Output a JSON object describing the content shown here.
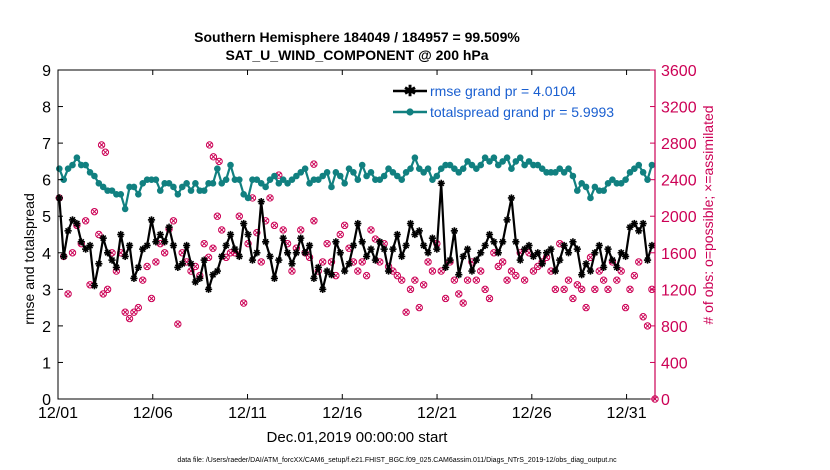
{
  "chart_data": {
    "type": "line",
    "title_line1": "Southern Hemisphere 184049 / 184957 = 99.509%",
    "title_line2": "SAT_U_WIND_COMPONENT @ 200 hPa",
    "xlabel": "Dec.01,2019 00:00:00 start",
    "ylabel_left": "rmse and totalspread",
    "ylabel_right": "# of obs: o=possible; ×=assimilated",
    "footnote": "data file: /Users/raeder/DAI/ATM_forcXX/CAM6_setup/f.e21.FHIST_BGC.f09_025.CAM6assim.011/Diags_NTrS_2019-12/obs_diag_output.nc",
    "x_range": [
      0,
      31.5
    ],
    "x_ticks": [
      {
        "x": 0,
        "label": "12/01"
      },
      {
        "x": 5,
        "label": "12/06"
      },
      {
        "x": 10,
        "label": "12/11"
      },
      {
        "x": 15,
        "label": "12/16"
      },
      {
        "x": 20,
        "label": "12/21"
      },
      {
        "x": 25,
        "label": "12/26"
      },
      {
        "x": 30,
        "label": "12/31"
      }
    ],
    "y_left_range": [
      0,
      9
    ],
    "y_left_ticks": [
      "0",
      "1",
      "2",
      "3",
      "4",
      "5",
      "6",
      "7",
      "8",
      "9"
    ],
    "y_right_range": [
      0,
      3600
    ],
    "y_right_ticks": [
      "0",
      "400",
      "800",
      "1200",
      "1600",
      "2000",
      "2400",
      "2800",
      "3200",
      "3600"
    ],
    "legend": [
      {
        "name": "rmse grand pr = 4.0104",
        "color": "#000000"
      },
      {
        "name": "totalspread grand pr = 5.9993",
        "color": "#118080"
      }
    ],
    "series": [
      {
        "name": "rmse",
        "color": "#000000",
        "values": [
          5.5,
          3.9,
          4.6,
          4.9,
          4.8,
          4.3,
          4.1,
          4.2,
          3.1,
          3.7,
          4.4,
          4.0,
          3.8,
          3.6,
          4.5,
          3.9,
          4.2,
          3.3,
          3.6,
          4.1,
          4.2,
          4.9,
          4.3,
          4.5,
          4.3,
          4.7,
          4.2,
          3.6,
          3.7,
          4.2,
          3.7,
          3.2,
          3.3,
          3.8,
          3.0,
          3.4,
          3.5,
          3.9,
          4.2,
          4.5,
          4.1,
          3.9,
          4.8,
          4.5,
          3.8,
          4.0,
          5.4,
          4.3,
          3.9,
          3.3,
          3.8,
          4.4,
          4.0,
          3.7,
          4.0,
          4.4,
          4.0,
          4.2,
          3.3,
          3.6,
          3.0,
          3.5,
          3.4,
          4.3,
          4.0,
          3.5,
          3.7,
          4.2,
          4.8,
          4.3,
          3.9,
          4.1,
          3.8,
          4.3,
          4.1,
          3.5,
          4.1,
          4.5,
          3.9,
          4.2,
          4.8,
          4.5,
          4.6,
          4.2,
          4.0,
          4.4,
          4.1,
          5.9,
          3.6,
          3.8,
          4.6,
          3.4,
          3.9,
          4.1,
          3.5,
          3.8,
          4.0,
          4.2,
          4.5,
          4.3,
          4.0,
          4.3,
          4.9,
          5.5,
          4.3,
          3.8,
          4.1,
          4.2,
          3.9,
          4.0,
          3.7,
          4.0,
          4.1,
          3.5,
          3.8,
          4.2,
          4.0,
          4.3,
          4.1,
          3.4,
          3.7,
          3.5,
          4.0,
          4.2,
          3.6,
          4.1,
          3.8,
          3.6,
          4.0,
          3.9,
          4.7,
          4.8,
          4.6,
          4.8,
          3.8,
          4.2
        ],
        "marker": "asterisk"
      },
      {
        "name": "totalspread",
        "color": "#118080",
        "values": [
          6.3,
          6.0,
          6.3,
          6.4,
          6.6,
          6.4,
          6.4,
          6.2,
          6.1,
          5.9,
          5.8,
          5.7,
          5.7,
          5.6,
          5.6,
          5.2,
          5.8,
          5.8,
          5.6,
          5.9,
          6.0,
          6.0,
          6.0,
          5.7,
          5.9,
          5.9,
          5.8,
          5.6,
          5.8,
          5.9,
          5.7,
          5.9,
          5.7,
          5.7,
          5.9,
          5.9,
          6.3,
          5.9,
          6.0,
          6.4,
          6.0,
          6.0,
          5.6,
          5.5,
          6.0,
          6.0,
          5.9,
          5.8,
          6.0,
          6.1,
          5.9,
          6.0,
          5.9,
          6.0,
          6.1,
          6.2,
          6.3,
          5.9,
          6.0,
          6.0,
          6.1,
          6.2,
          5.8,
          6.2,
          6.1,
          5.9,
          6.3,
          6.2,
          6.0,
          6.4,
          6.1,
          6.2,
          6.0,
          6.0,
          6.1,
          6.3,
          6.2,
          6.1,
          6.0,
          6.2,
          6.3,
          6.6,
          6.3,
          6.2,
          6.3,
          6.0,
          6.1,
          6.3,
          6.4,
          6.4,
          6.3,
          6.2,
          6.3,
          6.5,
          6.4,
          6.3,
          6.4,
          6.6,
          6.5,
          6.6,
          6.4,
          6.5,
          6.6,
          6.3,
          6.5,
          6.6,
          6.4,
          6.5,
          6.4,
          6.4,
          6.3,
          6.2,
          6.2,
          6.2,
          6.3,
          6.2,
          6.3,
          6.1,
          5.7,
          5.9,
          5.8,
          5.5,
          5.8,
          5.7,
          5.7,
          5.9,
          6.0,
          5.9,
          5.9,
          6.0,
          6.2,
          6.3,
          6.4,
          6.2,
          6.0,
          6.4
        ],
        "marker": "circle"
      }
    ],
    "obs_possible": [
      2200,
      1560,
      1150,
      1600,
      1900,
      1700,
      1950,
      1250,
      2050,
      1800,
      1150,
      1200,
      1600,
      1400,
      1600,
      950,
      880,
      950,
      1000,
      1300,
      1450,
      1100,
      1500,
      1700,
      1600,
      1860,
      1950,
      820,
      1600,
      1500,
      1400,
      1450,
      1350,
      1700,
      1550,
      1650,
      2000,
      1850,
      1550,
      1600,
      1600,
      2000,
      1050,
      1700,
      2200,
      1820,
      1500,
      1950,
      2200,
      1900,
      2450,
      1850,
      1700,
      1400,
      1650,
      1850,
      1600,
      1550,
      1950,
      1400,
      1500,
      1700,
      1500,
      1350,
      1800,
      1900,
      1650,
      1500,
      1400,
      1500,
      1350,
      1850,
      1750,
      1500,
      1700,
      1450,
      1400,
      1350,
      1300,
      950,
      1200,
      1300,
      1000,
      1250,
      1500,
      1400,
      1700,
      1400,
      1100,
      1500,
      1300,
      1150,
      1050,
      1300,
      1500,
      1300,
      1400,
      1200,
      1100,
      1600,
      1450,
      1500,
      1300,
      1400,
      1350,
      1600,
      1300,
      1600,
      1400,
      1450,
      1500,
      1550,
      1400,
      1200,
      1700,
      1200,
      1300,
      1100,
      1250,
      1200,
      1000,
      1550,
      1200,
      1400,
      1300,
      1200,
      1500,
      1300,
      1400,
      1000,
      1200,
      1350,
      1500,
      900,
      800,
      1200
    ],
    "obs_assimilated": [
      2200,
      1560,
      1150,
      1600,
      1900,
      1700,
      1950,
      1250,
      2050,
      1800,
      1150,
      1200,
      1600,
      1400,
      1600,
      950,
      880,
      950,
      1000,
      1300,
      1450,
      1100,
      1500,
      1700,
      1600,
      1860,
      1950,
      820,
      1600,
      1500,
      1400,
      1450,
      1350,
      1700,
      1550,
      1650,
      2000,
      1850,
      1550,
      1600,
      1600,
      2000,
      1050,
      1700,
      2200,
      1820,
      1500,
      1950,
      2200,
      1900,
      2450,
      1850,
      1700,
      1400,
      1650,
      1850,
      1600,
      1550,
      1950,
      1400,
      1500,
      1700,
      1500,
      1350,
      1800,
      1900,
      1650,
      1500,
      1400,
      1500,
      1350,
      1850,
      1750,
      1500,
      1700,
      1450,
      1400,
      1350,
      1300,
      950,
      1200,
      1300,
      1000,
      1250,
      1500,
      1400,
      1700,
      1400,
      1100,
      1500,
      1300,
      1150,
      1050,
      1300,
      1500,
      1300,
      1400,
      1200,
      1100,
      1600,
      1450,
      1500,
      1300,
      1400,
      1350,
      1600,
      1300,
      1600,
      1400,
      1450,
      1500,
      1550,
      1400,
      1200,
      1700,
      1200,
      1300,
      1100,
      1250,
      1200,
      1000,
      1550,
      1200,
      1400,
      1300,
      1200,
      1500,
      1300,
      1400,
      1000,
      1200,
      1350,
      1500,
      900,
      800,
      1200
    ],
    "obs_extra_points": [
      {
        "x": 2.3,
        "y": 2780
      },
      {
        "x": 2.5,
        "y": 2700
      },
      {
        "x": 8.0,
        "y": 2780
      },
      {
        "x": 8.2,
        "y": 2650
      },
      {
        "x": 8.5,
        "y": 2600
      },
      {
        "x": 13.5,
        "y": 2570
      }
    ],
    "marker_color": "#cc0055"
  }
}
